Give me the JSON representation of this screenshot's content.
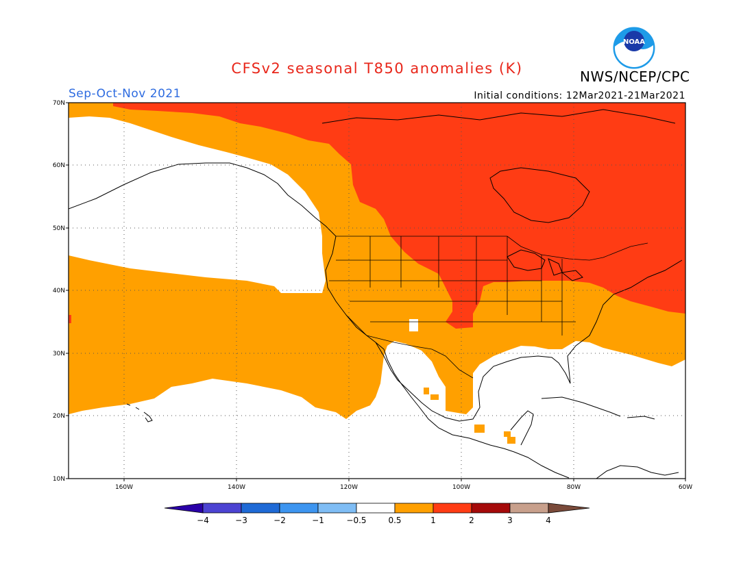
{
  "title": "CFSv2 seasonal T850 anomalies (K)",
  "agency": "NWS/NCEP/CPC",
  "logo_text": "NOAA",
  "season": "Sep-Oct-Nov 2021",
  "initial_conditions": "Initial conditions: 12Mar2021-21Mar2021",
  "map": {
    "lat_labels": [
      "70N",
      "60N",
      "50N",
      "40N",
      "30N",
      "20N",
      "10N"
    ],
    "lon_labels": [
      "160W",
      "140W",
      "120W",
      "100W",
      "80W",
      "60W"
    ],
    "extent": {
      "lon": [
        -170,
        -60
      ],
      "lat": [
        10,
        70
      ]
    },
    "grid": "dotted"
  },
  "colorbar": {
    "labels": [
      "−4",
      "−3",
      "−2",
      "−1",
      "−0.5",
      "0.5",
      "1",
      "2",
      "3",
      "4"
    ],
    "colors": [
      "#2a00a8",
      "#4c43d2",
      "#1f6ad6",
      "#3d95f0",
      "#7fbdf5",
      "#ffffff",
      "#ffa000",
      "#ff3c14",
      "#a50a0a",
      "#c8a08c",
      "#7a4a3a"
    ]
  },
  "anomaly_colors": {
    "warm_0_5_to_1": "#ffa000",
    "warm_1_to_2": "#ff3c14",
    "near_normal": "#ffffff"
  }
}
